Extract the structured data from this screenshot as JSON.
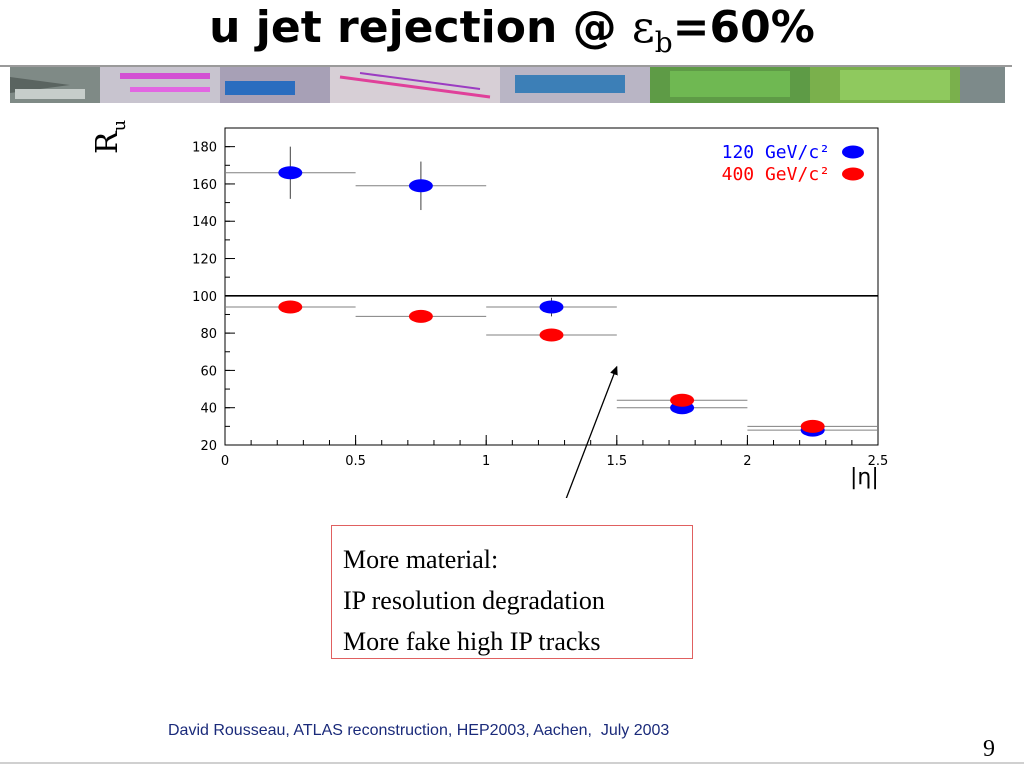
{
  "slide": {
    "title_main": "u jet rejection @ ",
    "title_eps": "ε",
    "title_sub": "b",
    "title_tail": "=60%",
    "footer": "David Rousseau, ATLAS reconstruction, HEP2003, Aachen,  July 2003",
    "page_number": "9",
    "callout_lines": [
      "More material:",
      "IP resolution degradation",
      "More fake high IP tracks"
    ],
    "callout_border_color": "#e06060",
    "footer_color": "#1a2a7a"
  },
  "chart_data": {
    "type": "scatter",
    "title": "",
    "xlabel": "|η|",
    "ylabel": "Ru",
    "xlim": [
      0,
      2.5
    ],
    "ylim": [
      20,
      190
    ],
    "xticks": [
      "0",
      "0.5",
      "1",
      "1.5",
      "2",
      "2.5"
    ],
    "yticks": [
      "20",
      "40",
      "60",
      "80",
      "100",
      "120",
      "140",
      "160",
      "180"
    ],
    "reference_line": 100,
    "legend_placement": "top-right",
    "grid": false,
    "series": [
      {
        "name": "120 GeV/c²",
        "color": "#0000ff",
        "points": [
          {
            "x": 0.25,
            "xerr": 0.25,
            "y": 166,
            "yerr": 14
          },
          {
            "x": 0.75,
            "xerr": 0.25,
            "y": 159,
            "yerr": 13
          },
          {
            "x": 1.25,
            "xerr": 0.25,
            "y": 94,
            "yerr": 5
          },
          {
            "x": 1.75,
            "xerr": 0.25,
            "y": 40,
            "yerr": 1
          },
          {
            "x": 2.25,
            "xerr": 0.25,
            "y": 28,
            "yerr": 1
          }
        ]
      },
      {
        "name": "400 GeV/c²",
        "color": "#ff0000",
        "points": [
          {
            "x": 0.25,
            "xerr": 0.25,
            "y": 94,
            "yerr": 2
          },
          {
            "x": 0.75,
            "xerr": 0.25,
            "y": 89,
            "yerr": 2
          },
          {
            "x": 1.25,
            "xerr": 0.25,
            "y": 79,
            "yerr": 2
          },
          {
            "x": 1.75,
            "xerr": 0.25,
            "y": 44,
            "yerr": 1
          },
          {
            "x": 2.25,
            "xerr": 0.25,
            "y": 30,
            "yerr": 1
          }
        ]
      }
    ],
    "annotation": {
      "arrow_from": [
        1.22,
        -8
      ],
      "arrow_to": [
        1.5,
        62
      ]
    }
  }
}
